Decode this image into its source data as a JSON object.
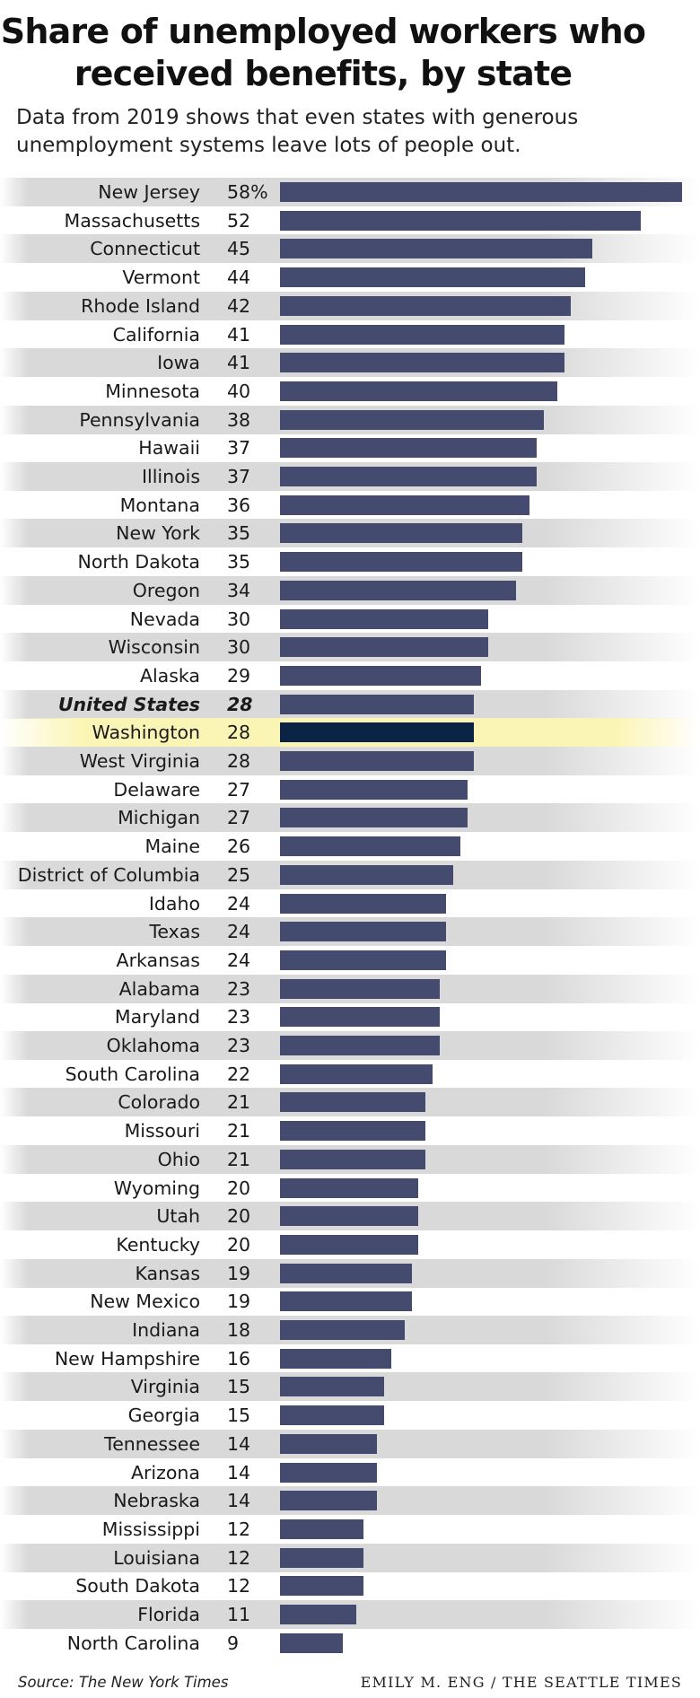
{
  "header": {
    "title": "Share of unemployed workers who received benefits, by state",
    "subtitle": "Data from 2019 shows that even states with generous unemployment systems leave lots of people out."
  },
  "footer": {
    "source": "Source: The New York Times",
    "credit": "EMILY M. ENG / THE SEATTLE TIMES"
  },
  "colors": {
    "bar": "#454b6e",
    "highlight_bar": "#0b2345",
    "stripe": "#d9d9d9",
    "highlight_row": "#fbf5b5"
  },
  "chart_data": {
    "type": "bar",
    "orientation": "horizontal",
    "unit_suffix_first_row": "%",
    "highlight": "Washington",
    "total_row": "United States",
    "xlim": [
      0,
      58
    ],
    "categories": [
      "New Jersey",
      "Massachusetts",
      "Connecticut",
      "Vermont",
      "Rhode Island",
      "California",
      "Iowa",
      "Minnesota",
      "Pennsylvania",
      "Hawaii",
      "Illinois",
      "Montana",
      "New York",
      "North Dakota",
      "Oregon",
      "Nevada",
      "Wisconsin",
      "Alaska",
      "United States",
      "Washington",
      "West Virginia",
      "Delaware",
      "Michigan",
      "Maine",
      "District of Columbia",
      "Idaho",
      "Texas",
      "Arkansas",
      "Alabama",
      "Maryland",
      "Oklahoma",
      "South Carolina",
      "Colorado",
      "Missouri",
      "Ohio",
      "Wyoming",
      "Utah",
      "Kentucky",
      "Kansas",
      "New Mexico",
      "Indiana",
      "New Hampshire",
      "Virginia",
      "Georgia",
      "Tennessee",
      "Arizona",
      "Nebraska",
      "Mississippi",
      "Louisiana",
      "South Dakota",
      "Florida",
      "North Carolina"
    ],
    "values": [
      58,
      52,
      45,
      44,
      42,
      41,
      41,
      40,
      38,
      37,
      37,
      36,
      35,
      35,
      34,
      30,
      30,
      29,
      28,
      28,
      28,
      27,
      27,
      26,
      25,
      24,
      24,
      24,
      23,
      23,
      23,
      22,
      21,
      21,
      21,
      20,
      20,
      20,
      19,
      19,
      18,
      16,
      15,
      15,
      14,
      14,
      14,
      12,
      12,
      12,
      11,
      9
    ],
    "value_labels": [
      "58%",
      "52",
      "45",
      "44",
      "42",
      "41",
      "41",
      "40",
      "38",
      "37",
      "37",
      "36",
      "35",
      "35",
      "34",
      "30",
      "30",
      "29",
      "28",
      "28",
      "28",
      "27",
      "27",
      "26",
      "25",
      "24",
      "24",
      "24",
      "23",
      "23",
      "23",
      "22",
      "21",
      "21",
      "21",
      "20",
      "20",
      "20",
      "19",
      "19",
      "18",
      "16",
      "15",
      "15",
      "14",
      "14",
      "14",
      "12",
      "12",
      "12",
      "11",
      "9"
    ]
  }
}
